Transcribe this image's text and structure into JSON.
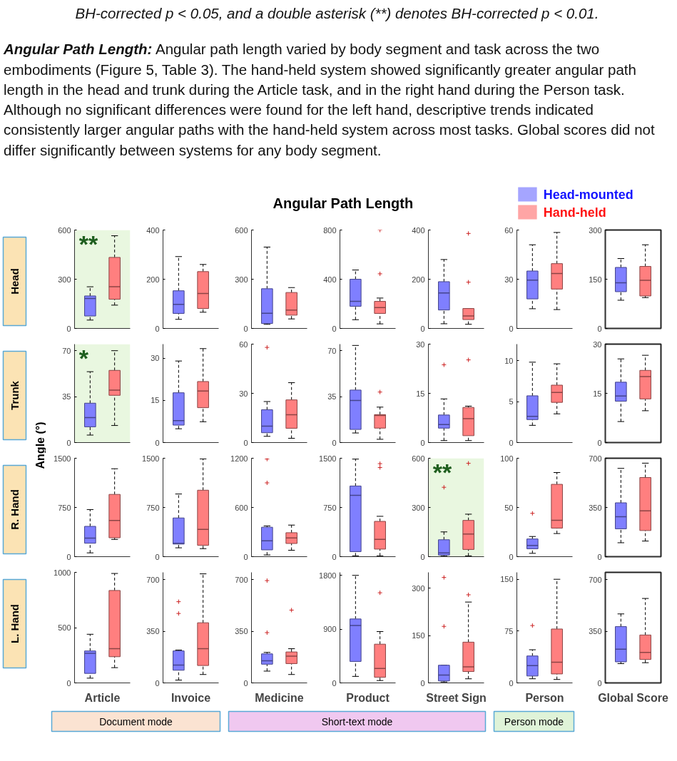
{
  "chart_data": [
    {
      "type": "other",
      "annotations": [
        "BH-corrected p < 0.05, and a double asterisk (**) denotes BH-corrected p < 0.01.",
        "Angular Path Length:",
        "Angular path length varied by body segment and task across the two embodiments (Figure 5, Table 3). The hand-held system showed significantly greater angular path length in the head and trunk during the Article task, and in the right hand during the Person task. Although no significant differences were found for the left hand, descriptive trends indicated consistently larger angular paths with the hand-held system across most tasks. Global scores did not differ significantly between systems for any body segment."
      ]
    },
    {
      "type": "other",
      "title": "Angular Path Length",
      "legend": "top right",
      "series": [
        {
          "name": "Head-mounted",
          "color": "#7f7fff"
        },
        {
          "name": "Hand-held",
          "color": "#ff7f7f"
        }
      ]
    },
    {
      "type": "other",
      "annotations": [
        "Angle (°)"
      ]
    },
    {
      "type": "box",
      "ylabel": "Head",
      "categories": [
        null
      ],
      "tick_labels": "y",
      "ylim": [
        0,
        600
      ],
      "yticks": [
        0,
        300,
        600
      ],
      "bands": [
        {
          "axis": "y",
          "from": 0,
          "to": 600,
          "color": "#e9f7e0"
        }
      ],
      "annotations": [
        "**"
      ],
      "series": [
        {
          "color": "#7f7fff",
          "boxes": [
            {
              "low": 51,
              "q1": 76,
              "median": 183,
              "q3": 198,
              "high": 254
            }
          ]
        },
        {
          "color": "#ff7f7f",
          "boxes": [
            {
              "low": 142,
              "q1": 178,
              "median": 254,
              "q3": 433,
              "high": 565
            }
          ]
        }
      ]
    },
    {
      "type": "box",
      "categories": [
        null
      ],
      "tick_labels": "y",
      "ylim": [
        0,
        400
      ],
      "yticks": [
        0,
        200,
        400
      ],
      "series": [
        {
          "color": "#7f7fff",
          "boxes": [
            {
              "low": 37,
              "q1": 61,
              "median": 98,
              "q3": 153,
              "high": 292
            }
          ]
        },
        {
          "color": "#ff7f7f",
          "boxes": [
            {
              "low": 66,
              "q1": 81,
              "median": 142,
              "q3": 231,
              "high": 260
            }
          ]
        }
      ]
    },
    {
      "type": "box",
      "categories": [
        null
      ],
      "tick_labels": "y",
      "ylim": [
        0,
        600
      ],
      "yticks": [
        0,
        300,
        600
      ],
      "series": [
        {
          "color": "#7f7fff",
          "boxes": [
            {
              "low": 25,
              "q1": 30,
              "median": 92,
              "q3": 242,
              "high": 496
            }
          ]
        },
        {
          "color": "#ff7f7f",
          "boxes": [
            {
              "low": 58,
              "q1": 81,
              "median": 112,
              "q3": 219,
              "high": 249
            }
          ]
        }
      ]
    },
    {
      "type": "box",
      "categories": [
        null
      ],
      "tick_labels": "y",
      "ylim": [
        0,
        800
      ],
      "yticks": [
        0,
        400,
        800
      ],
      "series": [
        {
          "color": "#7f7fff",
          "boxes": [
            {
              "low": 71,
              "q1": 180,
              "median": 220,
              "q3": 400,
              "high": 475
            }
          ]
        },
        {
          "color": "#ff7f7f",
          "boxes": [
            {
              "low": 37,
              "q1": 122,
              "median": 170,
              "q3": 220,
              "high": 247,
              "outliers": [
                444,
                800
              ]
            }
          ]
        }
      ]
    },
    {
      "type": "box",
      "categories": [
        null
      ],
      "tick_labels": "y",
      "ylim": [
        0,
        400
      ],
      "yticks": [
        0,
        200,
        400
      ],
      "series": [
        {
          "color": "#7f7fff",
          "boxes": [
            {
              "low": 19,
              "q1": 75,
              "median": 144,
              "q3": 190,
              "high": 280
            }
          ]
        },
        {
          "color": "#ff7f7f",
          "boxes": [
            {
              "low": 17,
              "q1": 36,
              "median": 51,
              "q3": 81,
              "high": 81,
              "outliers": [
                188,
                386
              ]
            }
          ]
        }
      ]
    },
    {
      "type": "box",
      "categories": [
        null
      ],
      "tick_labels": "y",
      "ylim": [
        0,
        60
      ],
      "yticks": [
        0,
        30,
        60
      ],
      "series": [
        {
          "color": "#7f7fff",
          "boxes": [
            {
              "low": 12,
              "q1": 18,
              "median": 29.5,
              "q3": 35,
              "high": 51
            }
          ]
        },
        {
          "color": "#ff7f7f",
          "boxes": [
            {
              "low": 11.5,
              "q1": 24,
              "median": 33.5,
              "q3": 39.5,
              "high": 58.5
            }
          ]
        }
      ]
    },
    {
      "type": "box",
      "categories": [
        null
      ],
      "tick_labels": "y",
      "ylim": [
        0,
        300
      ],
      "yticks": [
        0,
        150,
        300
      ],
      "series": [
        {
          "color": "#7f7fff",
          "boxes": [
            {
              "low": 86,
              "q1": 112,
              "median": 139,
              "q3": 186,
              "high": 213
            }
          ]
        },
        {
          "color": "#ff7f7f",
          "boxes": [
            {
              "low": 94,
              "q1": 99,
              "median": 147,
              "q3": 189,
              "high": 255
            }
          ]
        }
      ]
    },
    {
      "type": "box",
      "ylabel": "Trunk",
      "categories": [
        null
      ],
      "tick_labels": "y",
      "ylim": [
        0,
        75
      ],
      "yticks": [
        0,
        35,
        70
      ],
      "bands": [
        {
          "axis": "y",
          "from": 0,
          "to": 75,
          "color": "#e9f7e0"
        }
      ],
      "annotations": [
        "*"
      ],
      "series": [
        {
          "color": "#7f7fff",
          "boxes": [
            {
              "low": 5.7,
              "q1": 12,
              "median": 19,
              "q3": 30,
              "high": 54
            }
          ]
        },
        {
          "color": "#ff7f7f",
          "boxes": [
            {
              "low": 13,
              "q1": 36,
              "median": 40,
              "q3": 55,
              "high": 70
            }
          ]
        }
      ]
    },
    {
      "type": "box",
      "categories": [
        null
      ],
      "tick_labels": "y",
      "ylim": [
        0,
        35
      ],
      "yticks": [
        0,
        15,
        30
      ],
      "series": [
        {
          "color": "#7f7fff",
          "boxes": [
            {
              "low": 4.9,
              "q1": 6.2,
              "median": 7.8,
              "q3": 17.7,
              "high": 29
            }
          ]
        },
        {
          "color": "#ff7f7f",
          "boxes": [
            {
              "low": 7.4,
              "q1": 12.4,
              "median": 18.3,
              "q3": 21.7,
              "high": 33.4
            }
          ]
        }
      ]
    },
    {
      "type": "box",
      "categories": [
        null
      ],
      "tick_labels": "y",
      "ylim": [
        0,
        60
      ],
      "yticks": [
        0,
        30,
        60
      ],
      "series": [
        {
          "color": "#7f7fff",
          "boxes": [
            {
              "low": 3.8,
              "q1": 6,
              "median": 10,
              "q3": 20,
              "high": 25,
              "outliers": [
                58
              ]
            }
          ]
        },
        {
          "color": "#ff7f7f",
          "boxes": [
            {
              "low": 2.6,
              "q1": 8.7,
              "median": 17,
              "q3": 26,
              "high": 36.5
            }
          ]
        }
      ]
    },
    {
      "type": "box",
      "categories": [
        null
      ],
      "tick_labels": "y",
      "ylim": [
        0,
        75
      ],
      "yticks": [
        0,
        35,
        70
      ],
      "series": [
        {
          "color": "#7f7fff",
          "boxes": [
            {
              "low": 7.3,
              "q1": 10,
              "median": 32,
              "q3": 40,
              "high": 74
            }
          ]
        },
        {
          "color": "#ff7f7f",
          "boxes": [
            {
              "low": 2.5,
              "q1": 11,
              "median": 20.7,
              "q3": 21.3,
              "high": 27,
              "outliers": [
                38.5
              ]
            }
          ]
        }
      ]
    },
    {
      "type": "box",
      "categories": [
        null
      ],
      "tick_labels": "y",
      "ylim": [
        0,
        30
      ],
      "yticks": [
        0,
        15,
        30
      ],
      "series": [
        {
          "color": "#7f7fff",
          "boxes": [
            {
              "low": 0.6,
              "q1": 4.4,
              "median": 5.5,
              "q3": 8.4,
              "high": 13.3,
              "outliers": [
                23.7
              ]
            }
          ]
        },
        {
          "color": "#ff7f7f",
          "boxes": [
            {
              "low": 0.6,
              "q1": 2.1,
              "median": 7.3,
              "q3": 10.7,
              "high": 11.1,
              "outliers": [
                25.2
              ]
            }
          ]
        }
      ]
    },
    {
      "type": "box",
      "categories": [
        null
      ],
      "tick_labels": "y",
      "ylim": [
        0,
        12
      ],
      "yticks": [
        0,
        5,
        10
      ],
      "series": [
        {
          "color": "#7f7fff",
          "boxes": [
            {
              "low": 2.1,
              "q1": 2.8,
              "median": 3.2,
              "q3": 5.7,
              "high": 9.8
            }
          ]
        },
        {
          "color": "#ff7f7f",
          "boxes": [
            {
              "low": 3.5,
              "q1": 4.9,
              "median": 6.1,
              "q3": 7,
              "high": 9.6
            }
          ]
        }
      ]
    },
    {
      "type": "box",
      "categories": [
        null
      ],
      "tick_labels": "y",
      "ylim": [
        0,
        30
      ],
      "yticks": [
        0,
        15,
        30
      ],
      "series": [
        {
          "color": "#7f7fff",
          "boxes": [
            {
              "low": 6.4,
              "q1": 12.6,
              "median": 14.2,
              "q3": 18.4,
              "high": 25.5
            }
          ]
        },
        {
          "color": "#ff7f7f",
          "boxes": [
            {
              "low": 9.7,
              "q1": 13.3,
              "median": 20.1,
              "q3": 22,
              "high": 26.6
            }
          ]
        }
      ]
    },
    {
      "type": "box",
      "ylabel": "R. Hand",
      "categories": [
        null
      ],
      "tick_labels": "y",
      "ylim": [
        0,
        1500
      ],
      "yticks": [
        0,
        750,
        1500
      ],
      "series": [
        {
          "color": "#7f7fff",
          "boxes": [
            {
              "low": 58,
              "q1": 205,
              "median": 282,
              "q3": 462,
              "high": 718
            }
          ]
        },
        {
          "color": "#ff7f7f",
          "boxes": [
            {
              "low": 263,
              "q1": 288,
              "median": 551,
              "q3": 949,
              "high": 1340
            }
          ]
        }
      ]
    },
    {
      "type": "box",
      "categories": [
        null
      ],
      "tick_labels": "y",
      "ylim": [
        0,
        1500
      ],
      "yticks": [
        0,
        750,
        1500
      ],
      "series": [
        {
          "color": "#7f7fff",
          "boxes": [
            {
              "low": 135,
              "q1": 192,
              "median": 205,
              "q3": 590,
              "high": 955
            }
          ]
        },
        {
          "color": "#ff7f7f",
          "boxes": [
            {
              "low": 122,
              "q1": 173,
              "median": 417,
              "q3": 1013,
              "high": 1490
            }
          ]
        }
      ]
    },
    {
      "type": "box",
      "categories": [
        null
      ],
      "tick_labels": "y",
      "ylim": [
        0,
        1200
      ],
      "yticks": [
        0,
        600,
        1200
      ],
      "series": [
        {
          "color": "#7f7fff",
          "boxes": [
            {
              "low": 21,
              "q1": 83,
              "median": 193,
              "q3": 359,
              "high": 375,
              "outliers": [
                900,
                1190
              ]
            }
          ]
        },
        {
          "color": "#ff7f7f",
          "boxes": [
            {
              "low": 78,
              "q1": 161,
              "median": 229,
              "q3": 292,
              "high": 385
            }
          ]
        }
      ]
    },
    {
      "type": "box",
      "categories": [
        null
      ],
      "tick_labels": "y",
      "ylim": [
        0,
        1500
      ],
      "yticks": [
        0,
        750,
        1500
      ],
      "series": [
        {
          "color": "#7f7fff",
          "boxes": [
            {
              "low": 13,
              "q1": 77,
              "median": 936,
              "q3": 1077,
              "high": 1487
            }
          ]
        },
        {
          "color": "#ff7f7f",
          "boxes": [
            {
              "low": 13,
              "q1": 115,
              "median": 263,
              "q3": 538,
              "high": 615,
              "outliers": [
                1359,
                1417
              ]
            }
          ]
        }
      ]
    },
    {
      "type": "box",
      "categories": [
        null
      ],
      "tick_labels": "y",
      "ylim": [
        0,
        600
      ],
      "yticks": [
        0,
        300,
        600
      ],
      "bands": [
        {
          "axis": "y",
          "from": 0,
          "to": 600,
          "color": "#e9f7e0"
        }
      ],
      "annotations": [
        "**"
      ],
      "series": [
        {
          "color": "#7f7fff",
          "boxes": [
            {
              "low": 3,
              "q1": 10,
              "median": 23,
              "q3": 103,
              "high": 151,
              "outliers": [
                423
              ]
            }
          ]
        },
        {
          "color": "#ff7f7f",
          "boxes": [
            {
              "low": 5,
              "q1": 44,
              "median": 138,
              "q3": 221,
              "high": 259,
              "outliers": [
                569
              ]
            }
          ]
        }
      ]
    },
    {
      "type": "box",
      "categories": [
        null
      ],
      "tick_labels": "y",
      "ylim": [
        0,
        100
      ],
      "yticks": [
        0,
        50,
        100
      ],
      "series": [
        {
          "color": "#7f7fff",
          "boxes": [
            {
              "low": 3.4,
              "q1": 8,
              "median": 11.5,
              "q3": 18,
              "high": 20.5,
              "outliers": [
                44
              ]
            }
          ]
        },
        {
          "color": "#ff7f7f",
          "boxes": [
            {
              "low": 23.5,
              "q1": 29,
              "median": 37,
              "q3": 73.5,
              "high": 85.5
            }
          ]
        }
      ]
    },
    {
      "type": "box",
      "categories": [
        null
      ],
      "tick_labels": "y",
      "ylim": [
        0,
        700
      ],
      "yticks": [
        0,
        350,
        700
      ],
      "series": [
        {
          "color": "#7f7fff",
          "boxes": [
            {
              "low": 99,
              "q1": 198,
              "median": 284,
              "q3": 383,
              "high": 628
            }
          ]
        },
        {
          "color": "#ff7f7f",
          "boxes": [
            {
              "low": 111,
              "q1": 186,
              "median": 326,
              "q3": 563,
              "high": 665
            }
          ]
        }
      ]
    },
    {
      "type": "box",
      "ylabel": "L. Hand",
      "xlabel": "Article",
      "categories": [
        null
      ],
      "tick_labels": "y",
      "ylim": [
        0,
        1000
      ],
      "yticks": [
        0,
        500,
        1000
      ],
      "series": [
        {
          "color": "#7f7fff",
          "boxes": [
            {
              "low": 43,
              "q1": 86,
              "median": 267,
              "q3": 289,
              "high": 440
            }
          ]
        },
        {
          "color": "#ff7f7f",
          "boxes": [
            {
              "low": 138,
              "q1": 237,
              "median": 310,
              "q3": 836,
              "high": 990
            }
          ]
        }
      ]
    },
    {
      "type": "box",
      "xlabel": "Invoice",
      "categories": [
        null
      ],
      "tick_labels": "y",
      "ylim": [
        0,
        750
      ],
      "yticks": [
        0,
        350,
        700
      ],
      "series": [
        {
          "color": "#7f7fff",
          "boxes": [
            {
              "low": 19,
              "q1": 86,
              "median": 121,
              "q3": 217,
              "high": 223,
              "outliers": [
                471,
                551
              ]
            }
          ]
        },
        {
          "color": "#ff7f7f",
          "boxes": [
            {
              "low": 57,
              "q1": 118,
              "median": 232,
              "q3": 408,
              "high": 740
            }
          ]
        }
      ]
    },
    {
      "type": "box",
      "xlabel": "Medicine",
      "categories": [
        null
      ],
      "tick_labels": "y",
      "ylim": [
        0,
        750
      ],
      "yticks": [
        0,
        350,
        700
      ],
      "series": [
        {
          "color": "#7f7fff",
          "boxes": [
            {
              "low": 80,
              "q1": 127,
              "median": 150,
              "q3": 197,
              "high": 207,
              "outliers": [
                341,
                694
              ]
            }
          ]
        },
        {
          "color": "#ff7f7f",
          "boxes": [
            {
              "low": 57,
              "q1": 131,
              "median": 182,
              "q3": 210,
              "high": 232,
              "outliers": [
                494
              ]
            }
          ]
        }
      ]
    },
    {
      "type": "box",
      "xlabel": "Product",
      "categories": [
        null
      ],
      "tick_labels": "y",
      "ylim": [
        0,
        1850
      ],
      "yticks": [
        0,
        900,
        1800
      ],
      "series": [
        {
          "color": "#7f7fff",
          "boxes": [
            {
              "low": 109,
              "q1": 359,
              "median": 961,
              "q3": 1070,
              "high": 1800
            }
          ]
        },
        {
          "color": "#ff7f7f",
          "boxes": [
            {
              "low": 39,
              "q1": 94,
              "median": 242,
              "q3": 648,
              "high": 859,
              "outliers": [
                1508
              ]
            }
          ]
        }
      ]
    },
    {
      "type": "box",
      "xlabel": "Street Sign",
      "categories": [
        null
      ],
      "tick_labels": "y",
      "ylim": [
        0,
        350
      ],
      "yticks": [
        0,
        150,
        300
      ],
      "series": [
        {
          "color": "#7f7fff",
          "boxes": [
            {
              "low": 3,
              "q1": 6,
              "median": 25,
              "q3": 56,
              "high": 56,
              "outliers": [
                179,
                334
              ]
            }
          ]
        },
        {
          "color": "#ff7f7f",
          "boxes": [
            {
              "low": 13,
              "q1": 36,
              "median": 51,
              "q3": 129,
              "high": 256,
              "outliers": [
                279
              ]
            }
          ]
        }
      ]
    },
    {
      "type": "box",
      "xlabel": "Person",
      "categories": [
        null
      ],
      "tick_labels": "y",
      "ylim": [
        0,
        160
      ],
      "yticks": [
        0,
        75,
        150
      ],
      "series": [
        {
          "color": "#7f7fff",
          "boxes": [
            {
              "low": 6,
              "q1": 10,
              "median": 25,
              "q3": 39,
              "high": 48,
              "outliers": [
                83
              ]
            }
          ]
        },
        {
          "color": "#ff7f7f",
          "boxes": [
            {
              "low": 5,
              "q1": 13,
              "median": 30,
              "q3": 78,
              "high": 150
            }
          ]
        }
      ]
    },
    {
      "type": "box",
      "xlabel": "Global Score",
      "categories": [
        null
      ],
      "tick_labels": "y",
      "ylim": [
        0,
        750
      ],
      "yticks": [
        0,
        350,
        700
      ],
      "series": [
        {
          "color": "#7f7fff",
          "boxes": [
            {
              "low": 131,
              "q1": 143,
              "median": 229,
              "q3": 382,
              "high": 468
            }
          ]
        },
        {
          "color": "#ff7f7f",
          "boxes": [
            {
              "low": 137,
              "q1": 159,
              "median": 207,
              "q3": 325,
              "high": 573
            }
          ]
        }
      ]
    },
    {
      "type": "other",
      "annotations": [
        "Document mode",
        "Short-text mode",
        "Person mode"
      ]
    }
  ]
}
